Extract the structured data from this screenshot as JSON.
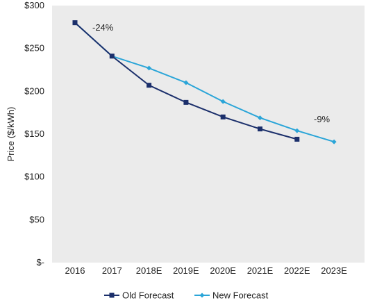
{
  "chart_data": {
    "type": "line",
    "ylabel": "Price ($/kWh)",
    "categories": [
      "2016",
      "2017",
      "2018E",
      "2019E",
      "2020E",
      "2021E",
      "2022E",
      "2023E"
    ],
    "y_ticks": [
      "$-",
      "$50",
      "$100",
      "$150",
      "$200",
      "$250",
      "$300"
    ],
    "ylim": [
      0,
      300
    ],
    "grid": false,
    "legend_position": "bottom",
    "series": [
      {
        "name": "Old Forecast",
        "color": "#1b2f6b",
        "marker": "square",
        "values": [
          280,
          241,
          207,
          187,
          170,
          156,
          144,
          null
        ]
      },
      {
        "name": "New Forecast",
        "color": "#2aa5d8",
        "marker": "diamond",
        "values": [
          280,
          241,
          227,
          210,
          188,
          169,
          154,
          141
        ]
      }
    ],
    "annotations": [
      {
        "text": "-24%",
        "category": "2016"
      },
      {
        "text": "-9%",
        "category": "2022E"
      }
    ]
  }
}
